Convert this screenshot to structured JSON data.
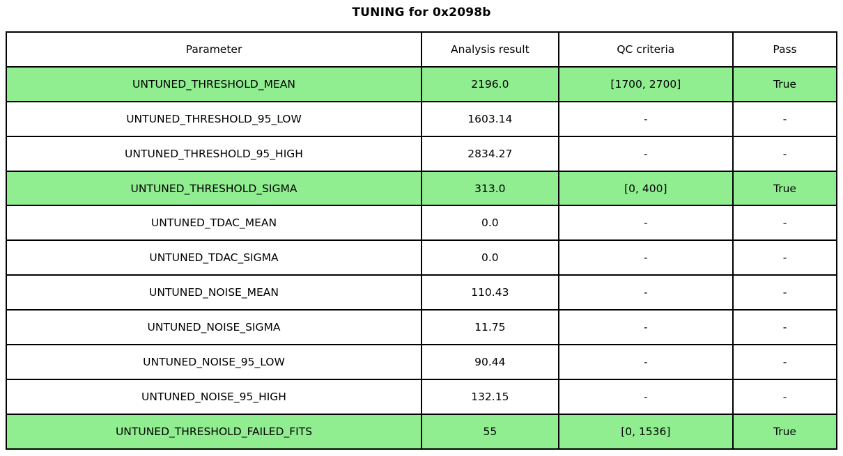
{
  "title": "TUNING for 0x2098b",
  "colors": {
    "pass_row_bg": "#90EE90",
    "border": "#000000",
    "background": "#FFFFFF",
    "text": "#000000"
  },
  "chart_data": {
    "type": "table",
    "title": "TUNING for 0x2098b",
    "columns": [
      "Parameter",
      "Analysis result",
      "QC criteria",
      "Pass"
    ],
    "rows": [
      {
        "parameter": "UNTUNED_THRESHOLD_MEAN",
        "analysis_result": "2196.0",
        "qc_criteria": "[1700, 2700]",
        "pass": "True",
        "highlighted": true
      },
      {
        "parameter": "UNTUNED_THRESHOLD_95_LOW",
        "analysis_result": "1603.14",
        "qc_criteria": "-",
        "pass": "-",
        "highlighted": false
      },
      {
        "parameter": "UNTUNED_THRESHOLD_95_HIGH",
        "analysis_result": "2834.27",
        "qc_criteria": "-",
        "pass": "-",
        "highlighted": false
      },
      {
        "parameter": "UNTUNED_THRESHOLD_SIGMA",
        "analysis_result": "313.0",
        "qc_criteria": "[0, 400]",
        "pass": "True",
        "highlighted": true
      },
      {
        "parameter": "UNTUNED_TDAC_MEAN",
        "analysis_result": "0.0",
        "qc_criteria": "-",
        "pass": "-",
        "highlighted": false
      },
      {
        "parameter": "UNTUNED_TDAC_SIGMA",
        "analysis_result": "0.0",
        "qc_criteria": "-",
        "pass": "-",
        "highlighted": false
      },
      {
        "parameter": "UNTUNED_NOISE_MEAN",
        "analysis_result": "110.43",
        "qc_criteria": "-",
        "pass": "-",
        "highlighted": false
      },
      {
        "parameter": "UNTUNED_NOISE_SIGMA",
        "analysis_result": "11.75",
        "qc_criteria": "-",
        "pass": "-",
        "highlighted": false
      },
      {
        "parameter": "UNTUNED_NOISE_95_LOW",
        "analysis_result": "90.44",
        "qc_criteria": "-",
        "pass": "-",
        "highlighted": false
      },
      {
        "parameter": "UNTUNED_NOISE_95_HIGH",
        "analysis_result": "132.15",
        "qc_criteria": "-",
        "pass": "-",
        "highlighted": false
      },
      {
        "parameter": "UNTUNED_THRESHOLD_FAILED_FITS",
        "analysis_result": "55",
        "qc_criteria": "[0, 1536]",
        "pass": "True",
        "highlighted": true
      }
    ]
  }
}
